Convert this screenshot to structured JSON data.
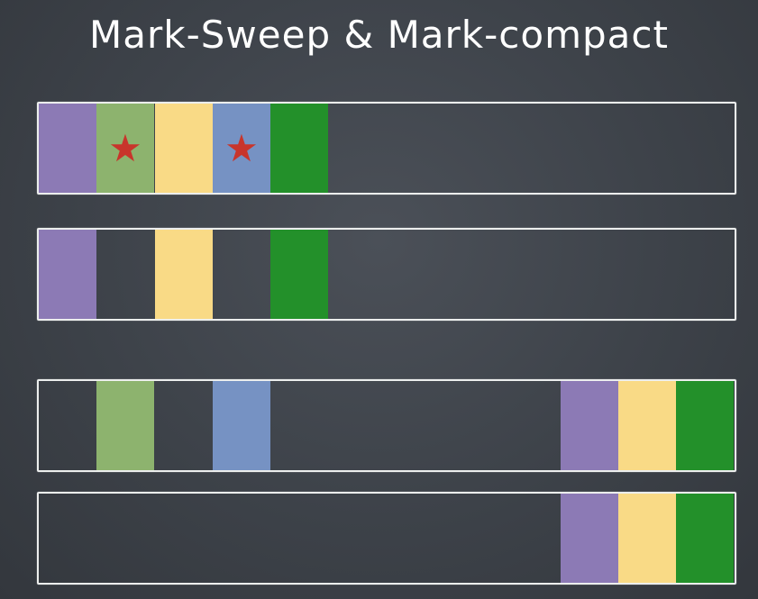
{
  "title": "Mark-Sweep & Mark-compact",
  "colors": {
    "purple": "#8c7ab5",
    "light_green": "#8db36e",
    "yellow": "#f9da86",
    "blue": "#7692c3",
    "dark_green": "#23902a",
    "star": "#c8352b",
    "chalk": "#eceeed"
  },
  "heaps": [
    {
      "name": "heap-before-mark-sweep",
      "blocks": [
        {
          "slot": 0,
          "color": "purple",
          "marked": false
        },
        {
          "slot": 1,
          "color": "light_green",
          "marked": true
        },
        {
          "slot": 2,
          "color": "yellow",
          "marked": false
        },
        {
          "slot": 3,
          "color": "blue",
          "marked": true
        },
        {
          "slot": 4,
          "color": "dark_green",
          "marked": false
        }
      ]
    },
    {
      "name": "heap-after-mark-sweep",
      "blocks": [
        {
          "slot": 0,
          "color": "purple",
          "marked": false
        },
        {
          "slot": 2,
          "color": "yellow",
          "marked": false
        },
        {
          "slot": 4,
          "color": "dark_green",
          "marked": false
        }
      ]
    },
    {
      "name": "heap-before-mark-compact",
      "blocks": [
        {
          "slot": 1,
          "color": "light_green",
          "marked": false
        },
        {
          "slot": 3,
          "color": "blue",
          "marked": false
        },
        {
          "slot": 9,
          "color": "purple",
          "marked": false
        },
        {
          "slot": 10,
          "color": "yellow",
          "marked": false
        },
        {
          "slot": 11,
          "color": "dark_green",
          "marked": false
        }
      ]
    },
    {
      "name": "heap-after-mark-compact",
      "blocks": [
        {
          "slot": 9,
          "color": "purple",
          "marked": false
        },
        {
          "slot": 10,
          "color": "yellow",
          "marked": false
        },
        {
          "slot": 11,
          "color": "dark_green",
          "marked": false
        }
      ]
    }
  ],
  "star_glyph": "★"
}
